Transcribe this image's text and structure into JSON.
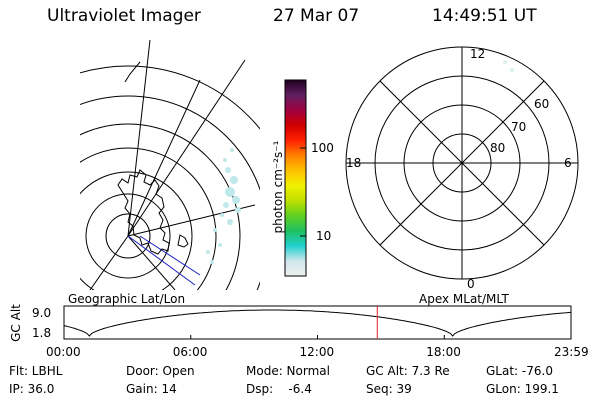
{
  "header": {
    "instrument": "Ultraviolet Imager",
    "date": "27 Mar 07",
    "time": "14:49:51 UT"
  },
  "colorbar": {
    "unit_label": "photon cm⁻²s⁻¹",
    "ticks": [
      "100",
      "10"
    ],
    "gradient": [
      "#f0f0f0",
      "#cfe6ea",
      "#20d0d0",
      "#20c060",
      "#60d020",
      "#c0e000",
      "#f0f000",
      "#ffc000",
      "#ff8000",
      "#ff2000",
      "#d00000",
      "#a00040",
      "#602060",
      "#200020"
    ]
  },
  "polar_plot": {
    "mlt_labels": {
      "top": "12",
      "left": "18",
      "right": "6",
      "bottom": "0"
    },
    "lat_labels": [
      "60",
      "70",
      "80"
    ]
  },
  "panel_labels": {
    "left": "Geographic Lat/Lon",
    "right": "Apex MLat/MLT"
  },
  "altitude_plot": {
    "ylabel": "GC Alt",
    "yticks": [
      "9.0",
      "1.8"
    ],
    "xticks": [
      "00:00",
      "06:00",
      "12:00",
      "18:00",
      "23:59"
    ],
    "current_time_hours": 14.83,
    "curve_color": "#000000",
    "marker_color": "#e02020"
  },
  "footer": {
    "row1": [
      "Flt: LBHL",
      "Door: Open",
      "Mode: Normal",
      "GC Alt: 7.3 Re",
      "GLat: -76.0"
    ],
    "row2": [
      "IP: 36.0",
      "Gain: 14",
      "Dsp:    -6.4",
      "Seq: 39",
      "GLon: 199.1"
    ]
  }
}
